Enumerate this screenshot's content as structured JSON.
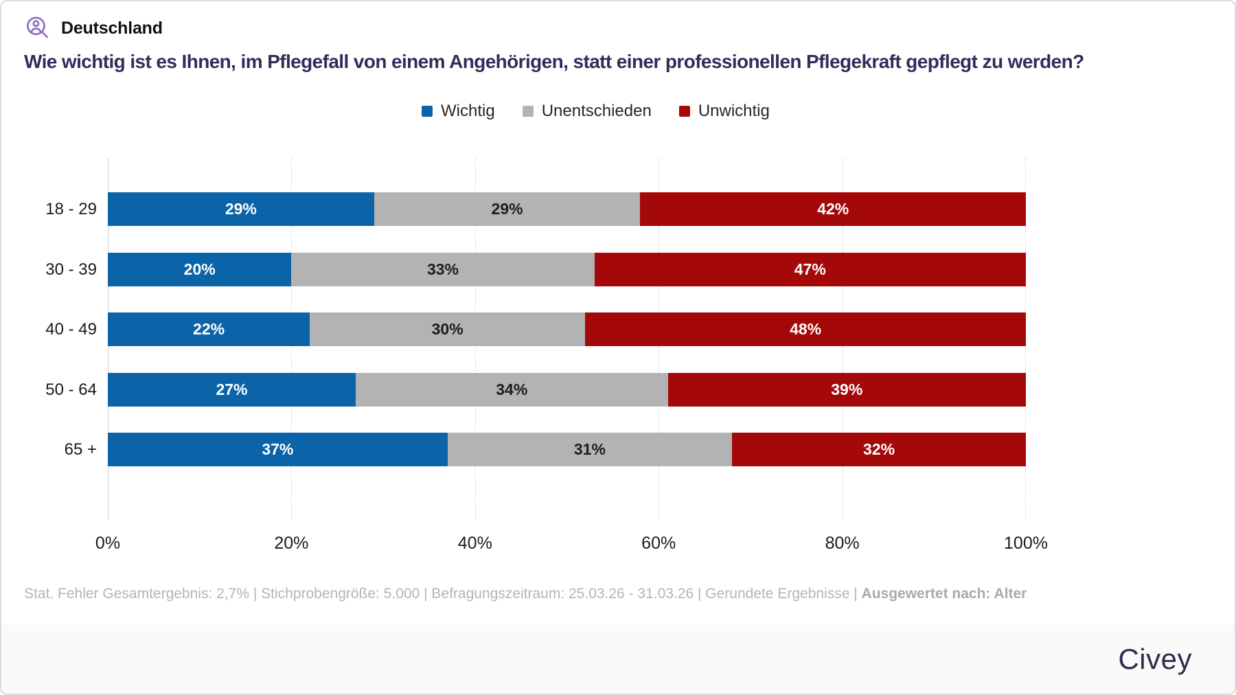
{
  "header": {
    "region_label": "Deutschland"
  },
  "title": "Wie wichtig ist es Ihnen, im Pflegefall von einem Angehörigen, statt einer professionellen Pflegekraft gepflegt zu werden?",
  "legend": [
    {
      "label": "Wichtig",
      "color": "#0b64a8"
    },
    {
      "label": "Unentschieden",
      "color": "#b3b3b3"
    },
    {
      "label": "Unwichtig",
      "color": "#a50808"
    }
  ],
  "chart_data": {
    "type": "bar",
    "orientation": "horizontal",
    "stacked": true,
    "title": "Wie wichtig ist es Ihnen, im Pflegefall von einem Angehörigen, statt einer professionellen Pflegekraft gepflegt zu werden?",
    "categories": [
      "18 - 29",
      "30 - 39",
      "40 - 49",
      "50 - 64",
      "65 +"
    ],
    "series": [
      {
        "name": "Wichtig",
        "color": "#0b64a8",
        "label_color": "#ffffff",
        "values": [
          29,
          20,
          22,
          27,
          37
        ]
      },
      {
        "name": "Unentschieden",
        "color": "#b3b3b3",
        "label_color": "#1d1d1d",
        "values": [
          29,
          33,
          30,
          34,
          31
        ]
      },
      {
        "name": "Unwichtig",
        "color": "#a50808",
        "label_color": "#ffffff",
        "values": [
          42,
          47,
          48,
          39,
          32
        ]
      }
    ],
    "value_suffix": "%",
    "xlim": [
      0,
      100
    ],
    "x_ticks": [
      "0%",
      "20%",
      "40%",
      "60%",
      "80%",
      "100%"
    ],
    "grid": "vertical-dashed",
    "legend_position": "top-center"
  },
  "footer": {
    "text_regular": "Stat. Fehler Gesamtergebnis: 2,7% | Stichprobengröße: 5.000 | Befragungszeitraum: 25.03.26 - 31.03.26 | Gerundete Ergebnisse | ",
    "text_bold": "Ausgewertet nach: Alter"
  },
  "brand": {
    "logo_text": "Civey"
  },
  "icon_colors": {
    "user_search_icon": "#8e6cc6"
  }
}
